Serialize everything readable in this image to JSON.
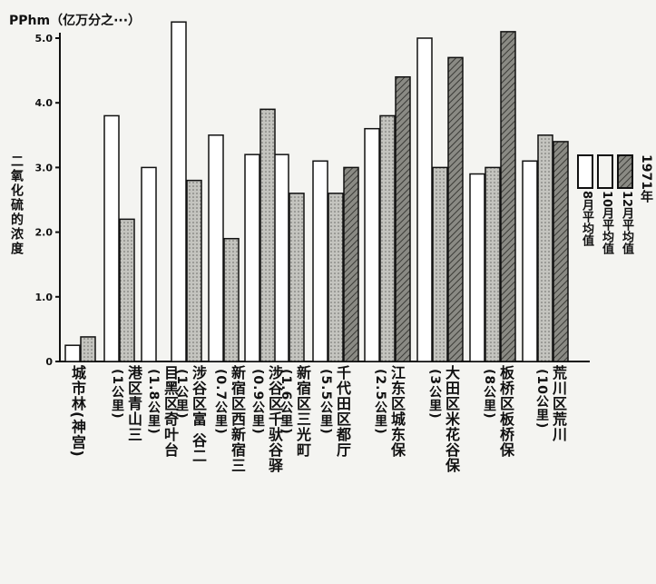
{
  "chart_data": {
    "type": "bar",
    "unit_label": "PPhm（亿万分之···）",
    "ylabel": "二氧化硫的浓度",
    "ylim": [
      0,
      5.2
    ],
    "yticks": [
      "5.0",
      "4.0",
      "3.0",
      "2.0",
      "1.0",
      "0"
    ],
    "ytick_values": [
      5,
      4,
      3,
      2,
      1,
      0
    ],
    "legend_year": "1971年",
    "categories": [
      {
        "name": "城市林(神宫)",
        "distance": ""
      },
      {
        "name": "港区青山三",
        "distance": "(1公里)"
      },
      {
        "name": "目黑区奇叶台",
        "distance": "(1.8公里)"
      },
      {
        "name": "涉谷区富 谷二",
        "distance": "(1公里)"
      },
      {
        "name": "新宿区西新宿三",
        "distance": "(0.7公里)"
      },
      {
        "name": "涉谷区千驮谷驿",
        "distance": "(0.9公里)"
      },
      {
        "name": "新宿区三光町",
        "distance": "(1.6公里)"
      },
      {
        "name": "千代田区都厅",
        "distance": "(5.5公里)"
      },
      {
        "name": "江东区城东保",
        "distance": "(2.5公里)"
      },
      {
        "name": "大田区米花谷保",
        "distance": "(3公里)"
      },
      {
        "name": "板桥区板桥保",
        "distance": "(8公里)"
      },
      {
        "name": "荒川区荒川",
        "distance": "(10公里)"
      }
    ],
    "series": [
      {
        "name": "8月平均值",
        "fill": "#ffffff",
        "values": [
          0.25,
          3.8,
          3.0,
          5.25,
          3.5,
          3.2,
          3.2,
          3.1,
          3.6,
          5.0,
          2.9,
          3.1
        ]
      },
      {
        "name": "10月平均值",
        "fill": "#b9b9b4",
        "values": [
          0.38,
          2.2,
          null,
          2.8,
          1.9,
          3.9,
          2.6,
          2.6,
          3.8,
          3.0,
          3.0,
          3.5
        ]
      },
      {
        "name": "12月平均值",
        "fill": "#7a7a74",
        "values": [
          null,
          null,
          null,
          null,
          null,
          null,
          null,
          3.0,
          4.4,
          4.7,
          5.1,
          3.4
        ]
      }
    ]
  }
}
